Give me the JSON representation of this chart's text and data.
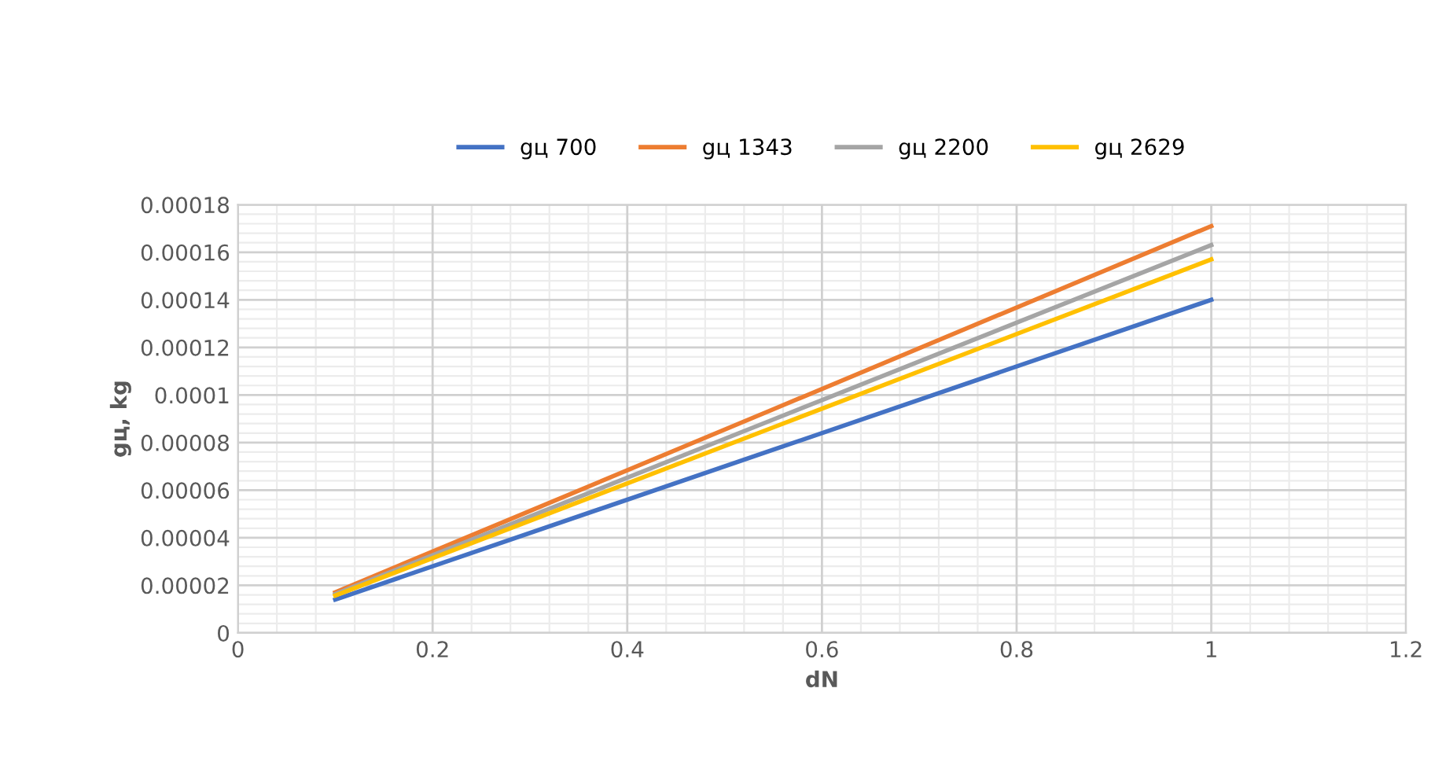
{
  "chart_data": {
    "type": "line",
    "xlabel": "dN",
    "ylabel": "gц, kg",
    "x": [
      0.1,
      0.55,
      1
    ],
    "series": [
      {
        "name": "gц 700",
        "color": "#4472c4",
        "values": [
          1.4e-05,
          7.7e-05,
          0.00014
        ]
      },
      {
        "name": "gц 1343",
        "color": "#ed7d31",
        "values": [
          1.71e-05,
          9.4e-05,
          0.000171
        ]
      },
      {
        "name": "gц 2200",
        "color": "#a5a5a5",
        "values": [
          1.63e-05,
          8.97e-05,
          0.000163
        ]
      },
      {
        "name": "gц 2629",
        "color": "#ffc000",
        "values": [
          1.57e-05,
          8.64e-05,
          0.000157
        ]
      }
    ],
    "xlim": [
      0,
      1.2
    ],
    "xticks": [
      0,
      {
        "value": 0.2,
        "label": "0.2"
      },
      {
        "value": 0.4,
        "label": "0.4"
      },
      {
        "value": 0.6,
        "label": "0.6"
      },
      {
        "value": 0.8,
        "label": "0.8"
      },
      1,
      {
        "value": 1.2,
        "label": "1.2"
      }
    ],
    "ylim": [
      0,
      0.00018
    ],
    "yticks": [
      0,
      {
        "value": 2e-05,
        "label": "0.00002"
      },
      {
        "value": 4e-05,
        "label": "0.00004"
      },
      {
        "value": 6e-05,
        "label": "0.00006"
      },
      {
        "value": 8e-05,
        "label": "0.00008"
      },
      {
        "value": 0.0001,
        "label": "0.0001"
      },
      {
        "value": 0.00012,
        "label": "0.00012"
      },
      {
        "value": 0.00014,
        "label": "0.00014"
      },
      {
        "value": 0.00016,
        "label": "0.00016"
      },
      {
        "value": 0.00018,
        "label": "0.00018"
      }
    ],
    "grid": true,
    "legend": "top",
    "marker": "none",
    "line_style": "solid"
  }
}
